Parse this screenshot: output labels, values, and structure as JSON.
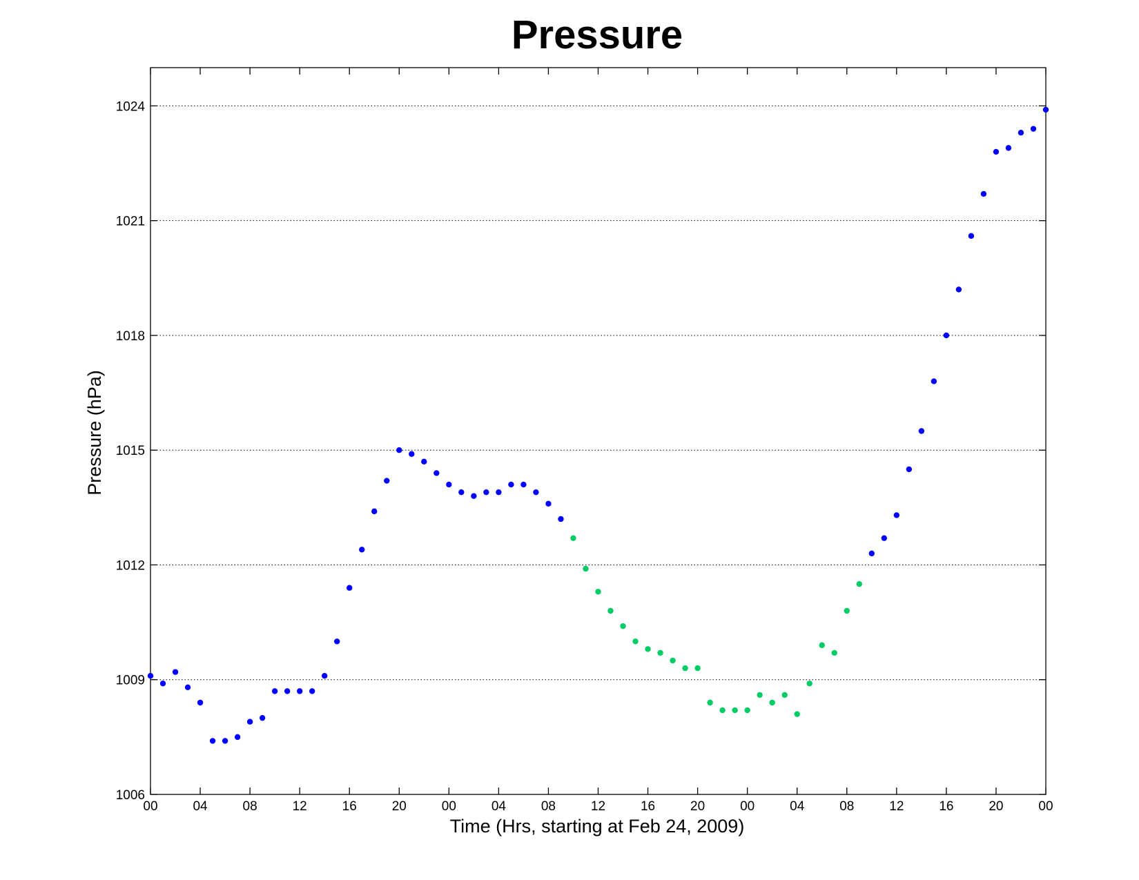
{
  "chart_data": {
    "type": "scatter",
    "title": "Pressure",
    "xlabel": "Time (Hrs, starting at Feb 24, 2009)",
    "ylabel": "Pressure (hPa)",
    "xlim": [
      0,
      72
    ],
    "ylim": [
      1006,
      1025
    ],
    "x_ticks": [
      0,
      4,
      8,
      12,
      16,
      20,
      24,
      28,
      32,
      36,
      40,
      44,
      48,
      52,
      56,
      60,
      64,
      68,
      72
    ],
    "x_tick_labels": [
      "00",
      "04",
      "08",
      "12",
      "16",
      "20",
      "00",
      "04",
      "08",
      "12",
      "16",
      "20",
      "00",
      "04",
      "08",
      "12",
      "16",
      "20",
      "00"
    ],
    "y_ticks": [
      1006,
      1009,
      1012,
      1015,
      1018,
      1021,
      1024
    ],
    "y_tick_labels": [
      "1006",
      "1009",
      "1012",
      "1015",
      "1018",
      "1021",
      "1024"
    ],
    "grid": "horizontal dotted",
    "colors": {
      "blue": "#0000ff",
      "green": "#00cc66"
    },
    "series": [
      {
        "color": "blue",
        "x": [
          0,
          1,
          2,
          3,
          4,
          5,
          6,
          7,
          8,
          9,
          10,
          11,
          12,
          13,
          14,
          15,
          16,
          17,
          18,
          19,
          20,
          21,
          22,
          23,
          24,
          25,
          26,
          27,
          28,
          29,
          30,
          31,
          32,
          33,
          58,
          59,
          60,
          61,
          62,
          63,
          64,
          65,
          66,
          67,
          68,
          69,
          70,
          71,
          72
        ],
        "y": [
          1009.1,
          1008.9,
          1009.2,
          1008.8,
          1008.4,
          1007.4,
          1007.4,
          1007.5,
          1007.9,
          1008.0,
          1008.7,
          1008.7,
          1008.7,
          1008.7,
          1009.1,
          1010.0,
          1011.4,
          1012.4,
          1013.4,
          1014.2,
          1015.0,
          1014.9,
          1014.7,
          1014.4,
          1014.1,
          1013.9,
          1013.8,
          1013.9,
          1013.9,
          1014.1,
          1014.1,
          1013.9,
          1013.6,
          1013.2,
          1012.3,
          1012.7,
          1013.3,
          1014.5,
          1015.5,
          1016.8,
          1018.0,
          1019.2,
          1020.6,
          1021.7,
          1022.8,
          1022.9,
          1023.3,
          1023.4,
          1023.9
        ]
      },
      {
        "color": "green",
        "x": [
          34,
          35,
          36,
          37,
          38,
          39,
          40,
          41,
          42,
          43,
          44,
          45,
          46,
          47,
          48,
          49,
          50,
          51,
          52,
          53,
          54,
          55,
          56,
          57
        ],
        "y": [
          1012.7,
          1011.9,
          1011.3,
          1010.8,
          1010.4,
          1010.0,
          1009.8,
          1009.7,
          1009.5,
          1009.3,
          1009.3,
          1008.4,
          1008.2,
          1008.2,
          1008.2,
          1008.6,
          1008.4,
          1008.6,
          1008.1,
          1008.9,
          1009.9,
          1009.7,
          1010.8,
          1011.5
        ]
      }
    ]
  }
}
